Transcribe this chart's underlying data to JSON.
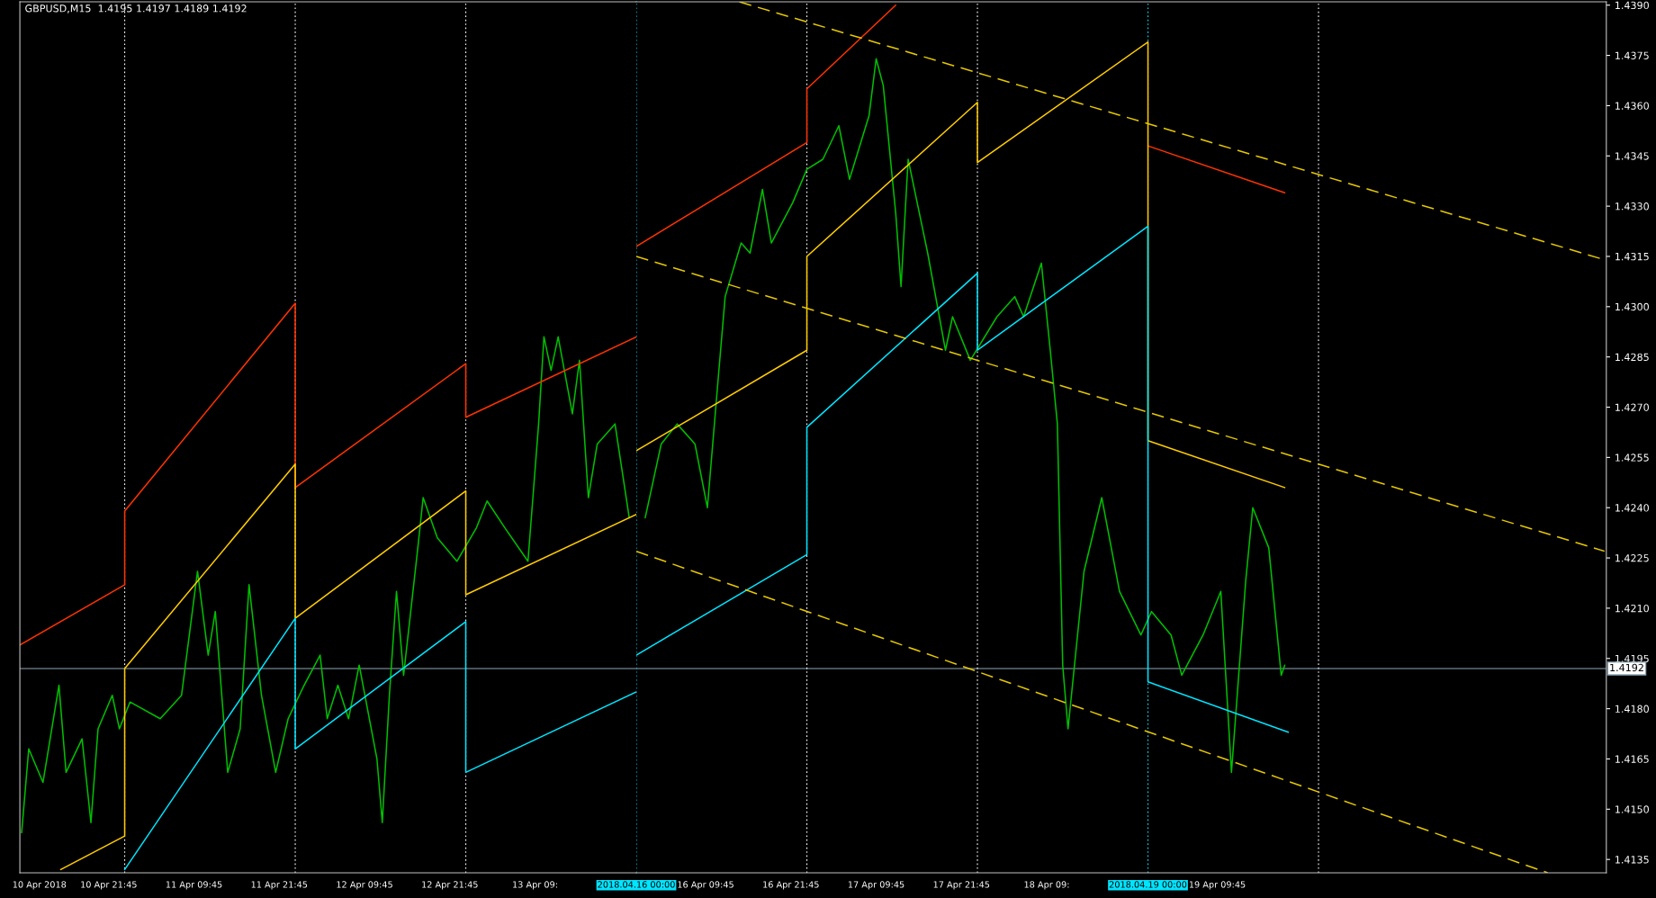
{
  "chart_data": [
    {
      "type": "line",
      "title": "GBPUSD,M15  1.4195 1.4197 1.4189 1.4192",
      "xlim": [
        "2018-04-10T09:15",
        "2018-04-14T00:00"
      ],
      "ylim": [
        1.4131,
        1.4391
      ],
      "tick_labels": "x",
      "xticks": [
        {
          "value": "2018-04-10T12:00",
          "label": "10 Apr 2018"
        },
        {
          "value": "2018-04-10T21:45",
          "label": "10 Apr 21:45"
        },
        {
          "value": "2018-04-11T09:45",
          "label": "11 Apr 09:45"
        },
        {
          "value": "2018-04-11T21:45",
          "label": "11 Apr 21:45"
        },
        {
          "value": "2018-04-12T09:45",
          "label": "12 Apr 09:45"
        },
        {
          "value": "2018-04-12T21:45",
          "label": "12 Apr 21:45"
        },
        {
          "value": "2018-04-13T09:45",
          "label": "13 Apr 09:"
        }
      ],
      "grid": false,
      "marker": "none",
      "series": [
        {
          "color": "#00c000",
          "x": [
            "2018-04-10T09:30",
            "2018-04-10T10:30",
            "2018-04-10T12:30",
            "2018-04-10T14:45",
            "2018-04-10T15:45",
            "2018-04-10T18:00",
            "2018-04-10T19:15",
            "2018-04-10T20:15",
            "2018-04-10T22:15",
            "2018-04-10T23:15",
            "2018-04-11T00:45",
            "2018-04-11T05:00",
            "2018-04-11T08:00",
            "2018-04-11T10:15",
            "2018-04-11T11:45",
            "2018-04-11T12:45",
            "2018-04-11T14:30",
            "2018-04-11T16:15",
            "2018-04-11T17:30",
            "2018-04-11T19:15",
            "2018-04-11T21:15",
            "2018-04-11T23:00",
            "2018-04-12T01:15",
            "2018-04-12T03:30",
            "2018-04-12T04:30",
            "2018-04-12T06:00",
            "2018-04-12T07:30",
            "2018-04-12T09:00",
            "2018-04-12T11:30",
            "2018-04-12T12:15",
            "2018-04-12T13:15",
            "2018-04-12T14:15",
            "2018-04-12T15:15",
            "2018-04-12T17:15",
            "2018-04-12T18:00",
            "2018-04-12T20:00",
            "2018-04-12T22:45",
            "2018-04-13T01:30",
            "2018-04-13T03:00",
            "2018-04-13T05:30",
            "2018-04-13T08:45",
            "2018-04-13T10:15",
            "2018-04-13T11:00",
            "2018-04-13T12:00",
            "2018-04-13T13:00",
            "2018-04-13T15:00",
            "2018-04-13T16:00",
            "2018-04-13T17:15",
            "2018-04-13T18:30",
            "2018-04-13T21:00",
            "2018-04-13T23:00"
          ],
          "values": [
            1.4143,
            1.4168,
            1.4158,
            1.4187,
            1.4161,
            1.4171,
            1.4146,
            1.4174,
            1.4184,
            1.4174,
            1.4182,
            1.4177,
            1.4184,
            1.4221,
            1.4196,
            1.4209,
            1.4161,
            1.4174,
            1.4217,
            1.4184,
            1.4161,
            1.4177,
            1.4187,
            1.4196,
            1.4177,
            1.4187,
            1.4177,
            1.4193,
            1.4165,
            1.4146,
            1.4184,
            1.4215,
            1.419,
            1.4228,
            1.4243,
            1.4231,
            1.4224,
            1.4234,
            1.4242,
            1.4234,
            1.4224,
            1.4265,
            1.4291,
            1.4281,
            1.4291,
            1.4268,
            1.4284,
            1.4243,
            1.4259,
            1.4265,
            1.4237
          ]
        },
        {
          "color": "#ff3300",
          "x": [
            "2018-04-10T09:15",
            "2018-04-11T00:00",
            "2018-04-11T00:00",
            "2018-04-12T00:00",
            "2018-04-12T00:00",
            "2018-04-13T00:00",
            "2018-04-13T00:00",
            "2018-04-14T00:00"
          ],
          "values": [
            1.4199,
            1.4217,
            1.4239,
            1.4301,
            1.4246,
            1.4283,
            1.4267,
            1.4291
          ]
        },
        {
          "color": "#ffcc00",
          "x": [
            "2018-04-10T15:00",
            "2018-04-11T00:00",
            "2018-04-11T00:00",
            "2018-04-12T00:00",
            "2018-04-12T00:00",
            "2018-04-13T00:00",
            "2018-04-13T00:00",
            "2018-04-14T00:00"
          ],
          "values": [
            1.4132,
            1.4142,
            1.4192,
            1.4253,
            1.4207,
            1.4245,
            1.4214,
            1.4238
          ]
        },
        {
          "color": "#00e5ff",
          "x": [
            "2018-04-11T00:00",
            "2018-04-12T00:00",
            "2018-04-12T00:00",
            "2018-04-13T00:00",
            "2018-04-13T00:00",
            "2018-04-14T00:00"
          ],
          "values": [
            1.4132,
            1.4207,
            1.4168,
            1.4206,
            1.4161,
            1.4185
          ]
        }
      ],
      "ref_lines": [
        {
          "axis": "y",
          "value": 1.4192,
          "color": "#8fa5b5",
          "line_style": "solid"
        },
        {
          "axis": "x",
          "value": "2018-04-11T00:00",
          "color": "#ffffff",
          "line_style": "dotted"
        },
        {
          "axis": "x",
          "value": "2018-04-12T00:00",
          "color": "#ffffff",
          "line_style": "dotted"
        },
        {
          "axis": "x",
          "value": "2018-04-13T00:00",
          "color": "#ffffff",
          "line_style": "dotted"
        }
      ]
    },
    {
      "type": "line",
      "xlim": [
        "2018-04-16T00:00",
        "2018-04-21T16:30"
      ],
      "ylim": [
        1.4131,
        1.4391
      ],
      "xticks": [
        {
          "value": "2018-04-16T00:00",
          "label": "2018.04.16 00:00"
        },
        {
          "value": "2018-04-16T09:45",
          "label": "16 Apr 09:45"
        },
        {
          "value": "2018-04-16T21:45",
          "label": "16 Apr 21:45"
        },
        {
          "value": "2018-04-17T09:45",
          "label": "17 Apr 09:45"
        },
        {
          "value": "2018-04-17T21:45",
          "label": "17 Apr 21:45"
        },
        {
          "value": "2018-04-18T09:45",
          "label": "18 Apr 09:"
        },
        {
          "value": "2018-04-19T00:00",
          "label": "2018.04.19 00:00"
        },
        {
          "value": "2018-04-19T09:45",
          "label": "19 Apr 09:45"
        }
      ],
      "yticks": [
        1.4135,
        {
          "value": 1.415,
          "label": "1.4150"
        },
        1.4165,
        {
          "value": 1.418,
          "label": "1.4180"
        },
        1.4195,
        {
          "value": 1.421,
          "label": "1.4210"
        },
        1.4225,
        {
          "value": 1.424,
          "label": "1.4240"
        },
        1.4255,
        {
          "value": 1.427,
          "label": "1.4270"
        },
        1.4285,
        {
          "value": 1.43,
          "label": "1.4300"
        },
        1.4315,
        {
          "value": 1.433,
          "label": "1.4330"
        },
        1.4345,
        {
          "value": 1.436,
          "label": "1.4360"
        },
        1.4375,
        {
          "value": 1.439,
          "label": "1.4390"
        }
      ],
      "grid": false,
      "marker": "none",
      "series": [
        {
          "color": "#00c000",
          "x": [
            "2018-04-16T01:15",
            "2018-04-16T03:30",
            "2018-04-16T05:45",
            "2018-04-16T08:15",
            "2018-04-16T10:00",
            "2018-04-16T11:30",
            "2018-04-16T12:30",
            "2018-04-16T14:45",
            "2018-04-16T16:00",
            "2018-04-16T17:45",
            "2018-04-16T19:00",
            "2018-04-16T22:00",
            "2018-04-17T00:00",
            "2018-04-17T02:15",
            "2018-04-17T04:30",
            "2018-04-17T06:00",
            "2018-04-17T08:45",
            "2018-04-17T09:45",
            "2018-04-17T10:45",
            "2018-04-17T12:30",
            "2018-04-17T13:15",
            "2018-04-17T14:15",
            "2018-04-17T17:00",
            "2018-04-17T19:30",
            "2018-04-17T20:30",
            "2018-04-17T23:00",
            "2018-04-18T02:45",
            "2018-04-18T05:15",
            "2018-04-18T06:30",
            "2018-04-18T09:00",
            "2018-04-18T10:15",
            "2018-04-18T11:15",
            "2018-04-18T12:00",
            "2018-04-18T12:45",
            "2018-04-18T15:00",
            "2018-04-18T17:30",
            "2018-04-18T20:00",
            "2018-04-18T23:00",
            "2018-04-19T00:30",
            "2018-04-19T03:15",
            "2018-04-19T04:45",
            "2018-04-19T07:45",
            "2018-04-19T10:15",
            "2018-04-19T11:45",
            "2018-04-19T13:45",
            "2018-04-19T14:45",
            "2018-04-19T17:00",
            "2018-04-19T18:45",
            "2018-04-19T19:15"
          ],
          "values": [
            1.4237,
            1.4259,
            1.4265,
            1.4259,
            1.424,
            1.4278,
            1.4303,
            1.4319,
            1.4316,
            1.4335,
            1.4319,
            1.4331,
            1.4341,
            1.4344,
            1.4354,
            1.4338,
            1.4357,
            1.4374,
            1.4366,
            1.4328,
            1.4306,
            1.4344,
            1.4316,
            1.4287,
            1.4297,
            1.4284,
            1.4297,
            1.4303,
            1.4297,
            1.4313,
            1.4287,
            1.4265,
            1.4193,
            1.4174,
            1.4221,
            1.4243,
            1.4215,
            1.4202,
            1.4209,
            1.4202,
            1.419,
            1.4202,
            1.4215,
            1.4161,
            1.4218,
            1.424,
            1.4228,
            1.419,
            1.4193
          ]
        },
        {
          "color": "#ff3300",
          "x": [
            "2018-04-16T00:00",
            "2018-04-17T00:00",
            "2018-04-17T00:00",
            "2018-04-17T12:30",
            "2018-04-18T05:15",
            "2018-04-19T00:00",
            "2018-04-19T19:15"
          ],
          "values": [
            1.4318,
            1.4349,
            1.4365,
            1.439,
            null,
            1.4348,
            1.4334
          ]
        },
        {
          "color": "#ffcc00",
          "x": [
            "2018-04-16T00:00",
            "2018-04-17T00:00",
            "2018-04-17T00:00",
            "2018-04-18T00:00",
            "2018-04-18T00:00",
            "2018-04-19T00:00",
            "2018-04-19T00:00",
            "2018-04-19T19:15"
          ],
          "values": [
            1.4257,
            1.4287,
            1.4315,
            1.4361,
            1.4343,
            1.4379,
            1.426,
            1.4246
          ]
        },
        {
          "color": "#00e5ff",
          "x": [
            "2018-04-16T00:00",
            "2018-04-17T00:00",
            "2018-04-17T00:00",
            "2018-04-18T00:00",
            "2018-04-18T00:00",
            "2018-04-19T00:00",
            "2018-04-19T00:00",
            "2018-04-19T19:45"
          ],
          "values": [
            1.4196,
            1.4226,
            1.4264,
            1.431,
            1.4287,
            1.4324,
            1.4188,
            1.4173
          ]
        },
        {
          "color": "#e6c800",
          "line_style": "dashed",
          "x": [
            "2018-04-16T14:30",
            "2018-04-21T16:15"
          ],
          "values": [
            1.4391,
            1.4314
          ]
        },
        {
          "color": "#e6c800",
          "line_style": "dashed",
          "x": [
            "2018-04-16T00:00",
            "2018-04-21T16:15"
          ],
          "values": [
            1.4315,
            1.4227
          ]
        },
        {
          "color": "#e6c800",
          "line_style": "dashed",
          "x": [
            "2018-04-16T00:00",
            "2018-04-21T08:15"
          ],
          "values": [
            1.4227,
            1.4131
          ]
        }
      ],
      "ref_lines": [
        {
          "axis": "y",
          "value": 1.4192,
          "label": "1.4192",
          "color": "#8fa5b5",
          "line_style": "solid"
        },
        {
          "axis": "x",
          "value": "2018-04-16T00:00",
          "color": "#00e5ff",
          "line_style": "dotted"
        },
        {
          "axis": "x",
          "value": "2018-04-17T00:00",
          "color": "#ffffff",
          "line_style": "dotted"
        },
        {
          "axis": "x",
          "value": "2018-04-18T00:00",
          "color": "#ffffff",
          "line_style": "dotted"
        },
        {
          "axis": "x",
          "value": "2018-04-19T00:00",
          "color": "#00e5ff",
          "line_style": "dotted"
        },
        {
          "axis": "x",
          "value": "2018-04-20T00:00",
          "color": "#ffffff",
          "line_style": "dotted"
        }
      ]
    }
  ]
}
